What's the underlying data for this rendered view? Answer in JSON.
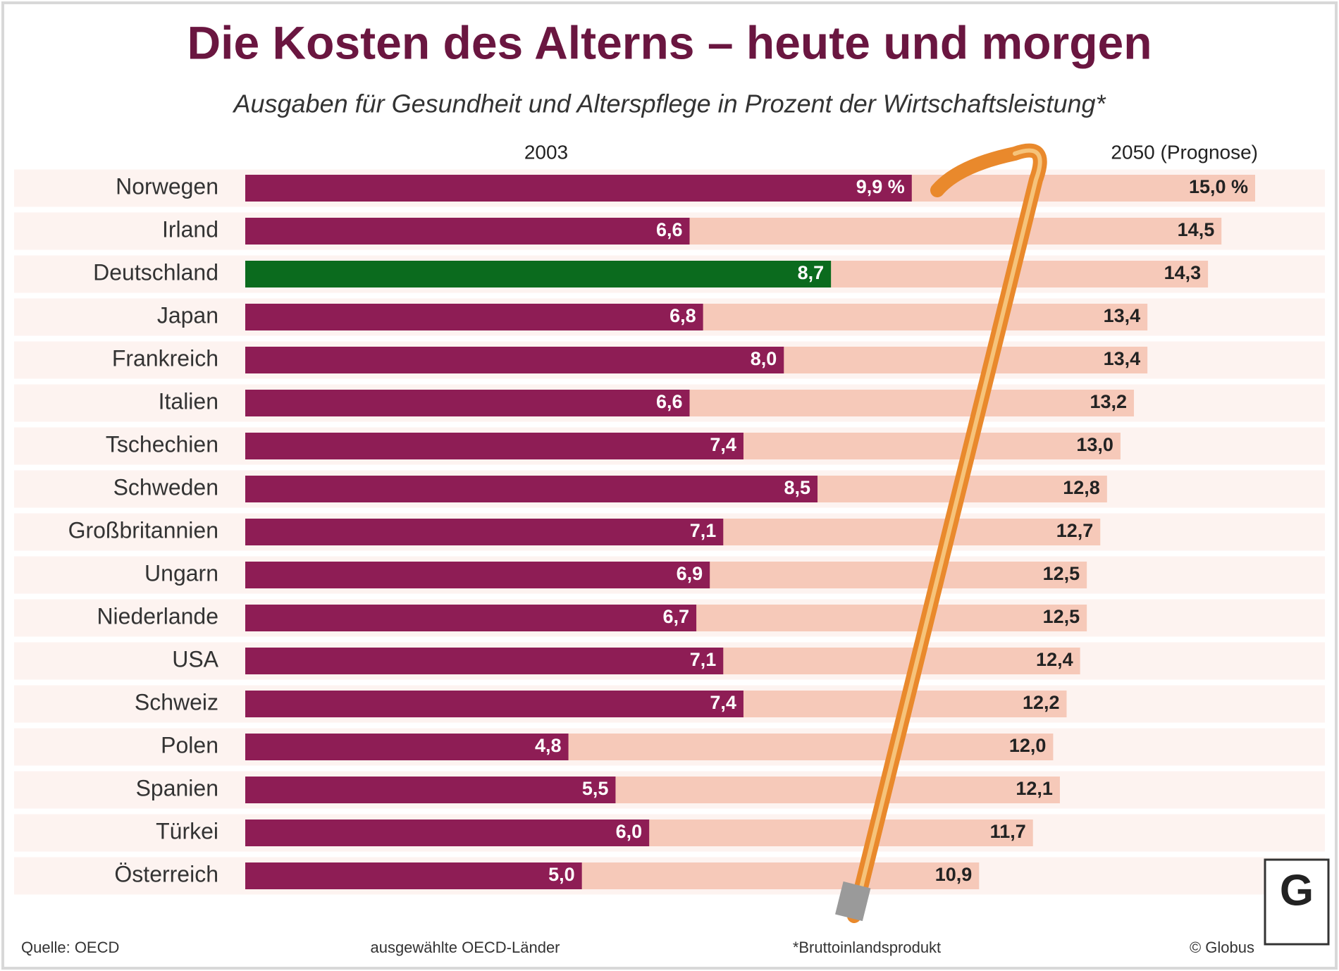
{
  "chart_data": {
    "type": "bar",
    "orientation": "horizontal",
    "title": "Die Kosten des Alterns – heute und morgen",
    "subtitle": "Ausgaben für Gesundheit und Alterspflege in Prozent der Wirtschaftsleistung*",
    "categories": [
      "Norwegen",
      "Irland",
      "Deutschland",
      "Japan",
      "Frankreich",
      "Italien",
      "Tschechien",
      "Schweden",
      "Großbritannien",
      "Ungarn",
      "Niederlande",
      "USA",
      "Schweiz",
      "Polen",
      "Spanien",
      "Türkei",
      "Österreich"
    ],
    "series": [
      {
        "name": "2003",
        "color": "#8e1d55",
        "highlight_index": 2,
        "highlight_color": "#0b6b1e",
        "values": [
          9.9,
          6.6,
          8.7,
          6.8,
          8.0,
          6.6,
          7.4,
          8.5,
          7.1,
          6.9,
          6.7,
          7.1,
          7.4,
          4.8,
          5.5,
          6.0,
          5.0
        ],
        "value_labels": [
          "9,9 %",
          "6,6",
          "8,7",
          "6,8",
          "8,0",
          "6,6",
          "7,4",
          "8,5",
          "7,1",
          "6,9",
          "6,7",
          "7,1",
          "7,4",
          "4,8",
          "5,5",
          "6,0",
          "5,0"
        ]
      },
      {
        "name": "2050 (Prognose)",
        "color": "#f6c9b9",
        "values": [
          15.0,
          14.5,
          14.3,
          13.4,
          13.4,
          13.2,
          13.0,
          12.8,
          12.7,
          12.5,
          12.5,
          12.4,
          12.2,
          12.0,
          12.1,
          11.7,
          10.9
        ],
        "value_labels": [
          "15,0 %",
          "14,5",
          "14,3",
          "13,4",
          "13,4",
          "13,2",
          "13,0",
          "12,8",
          "12,7",
          "12,5",
          "12,5",
          "12,4",
          "12,2",
          "12,0",
          "12,1",
          "11,7",
          "10,9"
        ]
      }
    ],
    "xlim": [
      0,
      15
    ],
    "source": "Quelle: OECD",
    "note": "ausgewählte OECD-Länder",
    "footnote": "*Bruttoinlandsprodukt",
    "credit": "© Globus"
  }
}
